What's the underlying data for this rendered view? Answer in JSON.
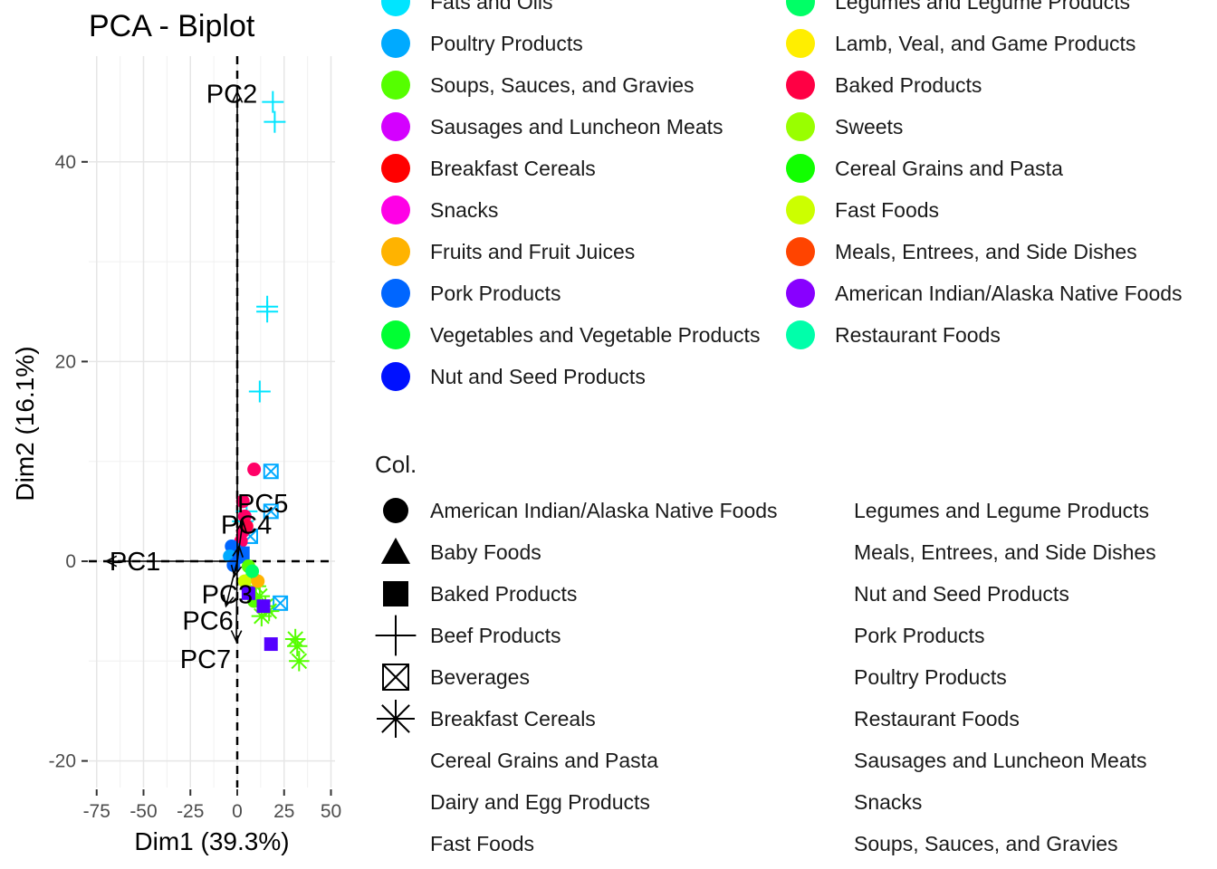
{
  "chart_data": {
    "type": "scatter",
    "title": "PCA - Biplot",
    "xlabel": "Dim1 (39.3%)",
    "ylabel": "Dim2 (16.1%)",
    "xlim": [
      -75,
      50
    ],
    "ylim": [
      -20,
      50
    ],
    "x_ticks": [
      "-75",
      "-50",
      "-25",
      "0",
      "25",
      "50"
    ],
    "y_ticks": [
      "-20",
      "0",
      "20",
      "40"
    ],
    "grid": true,
    "reference_lines": {
      "x": 0,
      "y": 0,
      "style": "dashed"
    },
    "arrows": [
      {
        "label": "PC1",
        "x": -70,
        "y": 0
      },
      {
        "label": "PC2",
        "x": 0,
        "y": 47
      },
      {
        "label": "PC3",
        "x": -1.5,
        "y": -1.5
      },
      {
        "label": "PC4",
        "x": 1,
        "y": 1.5
      },
      {
        "label": "PC5",
        "x": 3,
        "y": 4
      },
      {
        "label": "PC6",
        "x": -6,
        "y": -4.5
      },
      {
        "label": "PC7",
        "x": -0.5,
        "y": -8
      }
    ],
    "color_legend": [
      {
        "name": "Fats and Oils",
        "color": "#00E5FF"
      },
      {
        "name": "Poultry Products",
        "color": "#00AAFF"
      },
      {
        "name": "Soups, Sauces, and Gravies",
        "color": "#55FF00"
      },
      {
        "name": "Sausages and Luncheon Meats",
        "color": "#D400FF"
      },
      {
        "name": "Breakfast Cereals",
        "color": "#FF0000"
      },
      {
        "name": "Snacks",
        "color": "#FF00E6"
      },
      {
        "name": "Fruits and Fruit Juices",
        "color": "#FFB300"
      },
      {
        "name": "Pork Products",
        "color": "#0066FF"
      },
      {
        "name": "Vegetables and Vegetable Products",
        "color": "#00FF33"
      },
      {
        "name": "Nut and Seed Products",
        "color": "#0011FF"
      },
      {
        "name": "Legumes and Legume Products",
        "color": "#00FF66"
      },
      {
        "name": "Lamb, Veal, and Game Products",
        "color": "#FFEE00"
      },
      {
        "name": "Baked Products",
        "color": "#FF0044"
      },
      {
        "name": "Sweets",
        "color": "#99FF00"
      },
      {
        "name": "Cereal Grains and Pasta",
        "color": "#11FF00"
      },
      {
        "name": "Fast Foods",
        "color": "#CCFF00"
      },
      {
        "name": "Meals, Entrees, and Side Dishes",
        "color": "#FF4400"
      },
      {
        "name": "American Indian/Alaska Native Foods",
        "color": "#8800FF"
      },
      {
        "name": "Restaurant Foods",
        "color": "#00FFAA"
      }
    ],
    "shape_legend_title": "Col.",
    "shape_legend": [
      {
        "name": "American Indian/Alaska Native Foods",
        "shape": "circle"
      },
      {
        "name": "Baby Foods",
        "shape": "triangle"
      },
      {
        "name": "Baked Products",
        "shape": "square"
      },
      {
        "name": "Beef Products",
        "shape": "plus"
      },
      {
        "name": "Beverages",
        "shape": "boxed-x"
      },
      {
        "name": "Breakfast Cereals",
        "shape": "asterisk"
      },
      {
        "name": "Cereal Grains and Pasta",
        "shape": "none"
      },
      {
        "name": "Dairy and Egg Products",
        "shape": "none"
      },
      {
        "name": "Fast Foods",
        "shape": "none"
      },
      {
        "name": "Legumes and Legume Products",
        "shape": "none"
      },
      {
        "name": "Meals, Entrees, and Side Dishes",
        "shape": "none"
      },
      {
        "name": "Nut and Seed Products",
        "shape": "none"
      },
      {
        "name": "Pork Products",
        "shape": "none"
      },
      {
        "name": "Poultry Products",
        "shape": "none"
      },
      {
        "name": "Restaurant Foods",
        "shape": "none"
      },
      {
        "name": "Sausages and Luncheon Meats",
        "shape": "none"
      },
      {
        "name": "Snacks",
        "shape": "none"
      },
      {
        "name": "Soups, Sauces, and Gravies",
        "shape": "none"
      }
    ],
    "points": [
      {
        "x": 19,
        "y": 46,
        "shape": "plus",
        "color": "#00E5FF"
      },
      {
        "x": 20,
        "y": 44,
        "shape": "plus",
        "color": "#00E5FF"
      },
      {
        "x": 16,
        "y": 25.5,
        "shape": "plus",
        "color": "#00E5FF"
      },
      {
        "x": 16,
        "y": 25,
        "shape": "plus",
        "color": "#00E5FF"
      },
      {
        "x": 12,
        "y": 17,
        "shape": "plus",
        "color": "#00E5FF"
      },
      {
        "x": 5,
        "y": 5,
        "shape": "plus",
        "color": "#00E5FF"
      },
      {
        "x": 3,
        "y": 4,
        "shape": "plus",
        "color": "#00E5FF"
      },
      {
        "x": 9,
        "y": 9.2,
        "shape": "circle",
        "color": "#FF0066"
      },
      {
        "x": 18,
        "y": 9,
        "shape": "boxed-x",
        "color": "#00AAFF"
      },
      {
        "x": 18,
        "y": 5,
        "shape": "boxed-x",
        "color": "#00AAFF"
      },
      {
        "x": 23,
        "y": -4.2,
        "shape": "boxed-x",
        "color": "#00AAFF"
      },
      {
        "x": 7,
        "y": 2.5,
        "shape": "boxed-x",
        "color": "#00AAFF"
      },
      {
        "x": 3,
        "y": 6,
        "shape": "circle",
        "color": "#FF0066"
      },
      {
        "x": 4,
        "y": 4.5,
        "shape": "circle",
        "color": "#FF0066"
      },
      {
        "x": 3,
        "y": 3,
        "shape": "circle",
        "color": "#FF0066"
      },
      {
        "x": 2,
        "y": 2,
        "shape": "circle",
        "color": "#FF0066"
      },
      {
        "x": 5,
        "y": 3.5,
        "shape": "circle",
        "color": "#FF0044"
      },
      {
        "x": -3,
        "y": 1.5,
        "shape": "circle",
        "color": "#0066FF"
      },
      {
        "x": -1,
        "y": 1.2,
        "shape": "circle",
        "color": "#0066FF"
      },
      {
        "x": -4,
        "y": 0.5,
        "shape": "circle",
        "color": "#00AAFF"
      },
      {
        "x": 1,
        "y": 0.4,
        "shape": "circle",
        "color": "#0066FF"
      },
      {
        "x": -2,
        "y": -0.4,
        "shape": "circle",
        "color": "#0066FF"
      },
      {
        "x": 3,
        "y": 0.8,
        "shape": "square",
        "color": "#0066FF"
      },
      {
        "x": 6,
        "y": -0.5,
        "shape": "circle",
        "color": "#55FF00"
      },
      {
        "x": 8,
        "y": -1.5,
        "shape": "circle",
        "color": "#55FF00"
      },
      {
        "x": 10,
        "y": -2.5,
        "shape": "asterisk",
        "color": "#55FF00"
      },
      {
        "x": 12,
        "y": -3.5,
        "shape": "asterisk",
        "color": "#55FF00"
      },
      {
        "x": 15,
        "y": -4.5,
        "shape": "asterisk",
        "color": "#55FF00"
      },
      {
        "x": 13,
        "y": -5.5,
        "shape": "asterisk",
        "color": "#55FF00"
      },
      {
        "x": 17,
        "y": -5,
        "shape": "asterisk",
        "color": "#55FF00"
      },
      {
        "x": 9,
        "y": -4,
        "shape": "circle",
        "color": "#55FF00"
      },
      {
        "x": 6,
        "y": -3,
        "shape": "circle",
        "color": "#99FF00"
      },
      {
        "x": 4,
        "y": -2,
        "shape": "circle",
        "color": "#CCFF00"
      },
      {
        "x": 14,
        "y": -4.5,
        "shape": "square",
        "color": "#5500FF"
      },
      {
        "x": 6,
        "y": -3.2,
        "shape": "square",
        "color": "#5500FF"
      },
      {
        "x": 18,
        "y": -8.3,
        "shape": "square",
        "color": "#5500FF"
      },
      {
        "x": 31,
        "y": -7.8,
        "shape": "asterisk",
        "color": "#55FF00"
      },
      {
        "x": 32,
        "y": -8.5,
        "shape": "asterisk",
        "color": "#55FF00"
      },
      {
        "x": 33,
        "y": -10,
        "shape": "asterisk",
        "color": "#55FF00"
      },
      {
        "x": 11,
        "y": -2,
        "shape": "circle",
        "color": "#FFB300"
      },
      {
        "x": 8,
        "y": -1,
        "shape": "circle",
        "color": "#00FF66"
      }
    ]
  }
}
